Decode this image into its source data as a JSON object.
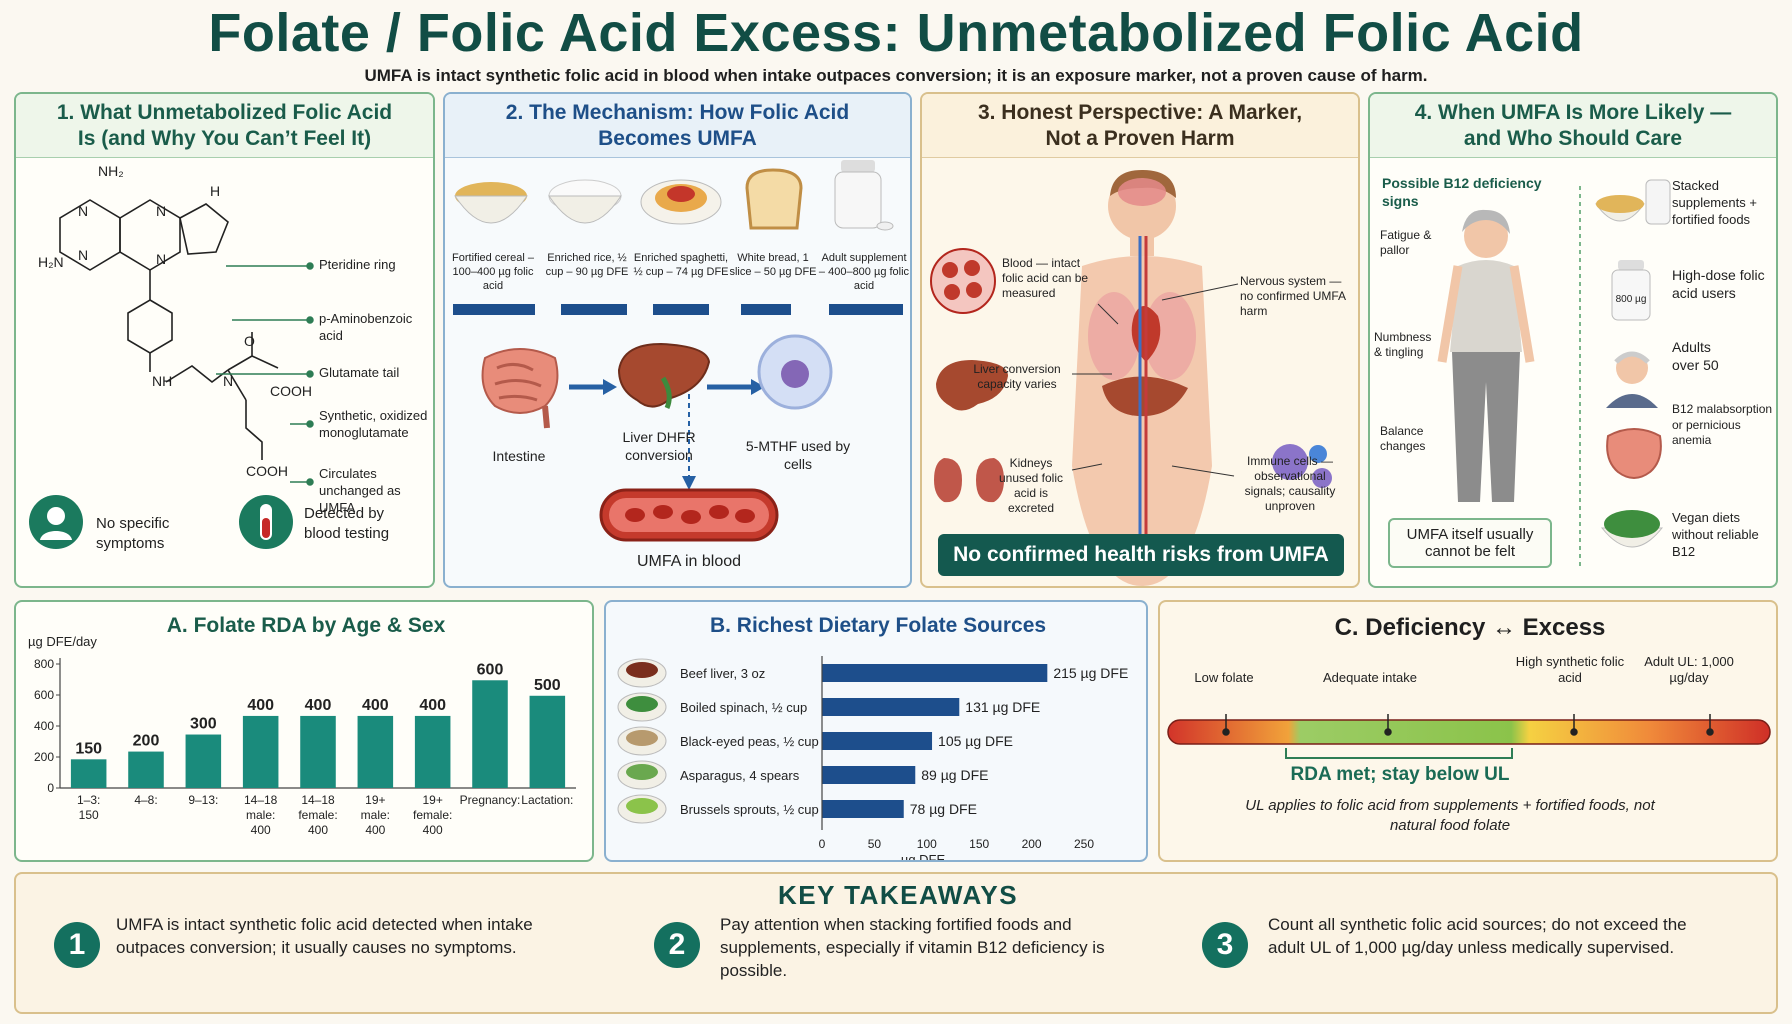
{
  "header": {
    "title": "Folate / Folic Acid Excess: Unmetabolized Folic Acid",
    "subtitle": "UMFA is intact synthetic folic acid in blood when intake outpaces conversion; it is an exposure marker, not a proven cause of harm."
  },
  "panel1": {
    "heading": "1. What Unmetabolized Folic Acid Is (and Why You Can’t Feel It)",
    "atoms": {
      "nh2_top": "NH₂",
      "h2n": "H₂N",
      "n1": "N",
      "n2": "N",
      "n3": "N",
      "n4": "N",
      "h": "H",
      "nh": "NH",
      "n5": "N",
      "o": "O",
      "cooh1": "COOH",
      "cooh2": "COOH"
    },
    "labels": [
      "Pteridine ring",
      "p-Aminobenzoic acid",
      "Glutamate tail",
      "Synthetic, oxidized monoglutamate",
      "Circulates unchanged as UMFA"
    ],
    "no_symptoms": "No specific symptoms",
    "detected": "Detected by blood testing"
  },
  "panel2": {
    "heading": "2. The Mechanism: How Folic Acid Becomes UMFA",
    "foods": [
      "Fortified cereal – 100–400 µg folic acid",
      "Enriched rice, ½ cup – 90 µg DFE",
      "Enriched spaghetti, ½ cup – 74 µg DFE",
      "White bread, 1 slice – 50 µg DFE",
      "Adult supplement – 400–800 µg folic acid"
    ],
    "intestine": "Intestine",
    "liver": "Liver DHFR conversion",
    "mthf": "5-MTHF used by cells",
    "umfa": "UMFA in blood"
  },
  "panel3": {
    "heading": "3. Honest Perspective: A Marker, Not a Proven Harm",
    "blood": "Blood — intact folic acid can be measured",
    "liver": "Liver conversion capacity varies",
    "kidneys": "Kidneys unused folic acid is excreted",
    "nervous": "Nervous system — no confirmed UMFA harm",
    "immune": "Immune cells — observational signals; causality unproven",
    "banner": "No confirmed health risks from UMFA"
  },
  "panel4": {
    "heading": "4. When UMFA Is More Likely — and Who Should Care",
    "b12_title": "Possible B12 deficiency signs",
    "signs": [
      "Fatigue & pallor",
      "Numbness & tingling",
      "Balance changes"
    ],
    "cannot_feel": "UMFA itself usually cannot be felt",
    "pill_label": "800 µg",
    "groups": [
      "Stacked supplements + fortified foods",
      "High-dose folic acid users",
      "Adults over 50",
      "B12 malabsorption or pernicious anemia",
      "Vegan diets without reliable B12"
    ]
  },
  "chart_data": [
    {
      "type": "bar",
      "title": "A. Folate RDA by Age & Sex",
      "ylabel": "µg DFE/day",
      "ylim": [
        0,
        800
      ],
      "yticks": [
        "0",
        "200",
        "400",
        "600",
        "800"
      ],
      "categories": [
        "1–3: 150",
        "4–8:",
        "9–13:",
        "14–18 male: 400",
        "14–18 female: 400",
        "19+ male: 400",
        "19+ female: 400",
        "Pregnancy:",
        "Lactation:"
      ],
      "values": [
        150,
        200,
        300,
        400,
        400,
        400,
        400,
        600,
        500
      ],
      "plotted": [
        185,
        235,
        345,
        465,
        465,
        465,
        465,
        695,
        595
      ],
      "data_labels": [
        "150",
        "200",
        "300",
        "400",
        "400",
        "400",
        "400",
        "600",
        "500"
      ],
      "color": "#1a8b7c"
    },
    {
      "type": "bar",
      "orientation": "horizontal",
      "title": "B. Richest Dietary Folate Sources",
      "xlabel": "µg DFE",
      "xlim": [
        0,
        250
      ],
      "xticks": [
        "0",
        "50",
        "100",
        "150",
        "200",
        "250"
      ],
      "categories": [
        "Beef liver, 3 oz",
        "Boiled spinach, ½ cup",
        "Black-eyed peas, ½ cup",
        "Asparagus, 4 spears",
        "Brussels sprouts, ½ cup"
      ],
      "values": [
        215,
        131,
        105,
        89,
        78
      ],
      "data_labels": [
        "215 µg DFE",
        "131 µg DFE",
        "105 µg DFE",
        "89 µg DFE",
        "78 µg DFE"
      ],
      "color": "#1d4e8c"
    }
  ],
  "panelC": {
    "heading": "C. Deficiency ↔ Excess",
    "markers": [
      "Low folate",
      "Adequate intake",
      "High synthetic folic acid",
      "Adult UL: 1,000 µg/day"
    ],
    "rda": "RDA met; stay below UL",
    "note": "UL applies to folic acid from supplements + fortified foods, not natural food folate"
  },
  "takeaways": {
    "heading": "KEY TAKEAWAYS",
    "items": [
      {
        "num": "1",
        "text": "UMFA is intact synthetic folic acid detected when intake outpaces conversion; it usually causes no symptoms."
      },
      {
        "num": "2",
        "text": "Pay attention when stacking fortified foods and supplements, especially if vitamin B12 deficiency is possible."
      },
      {
        "num": "3",
        "text": "Count all synthetic folic acid sources; do not exceed the adult UL of 1,000 µg/day unless medically supervised."
      }
    ]
  }
}
